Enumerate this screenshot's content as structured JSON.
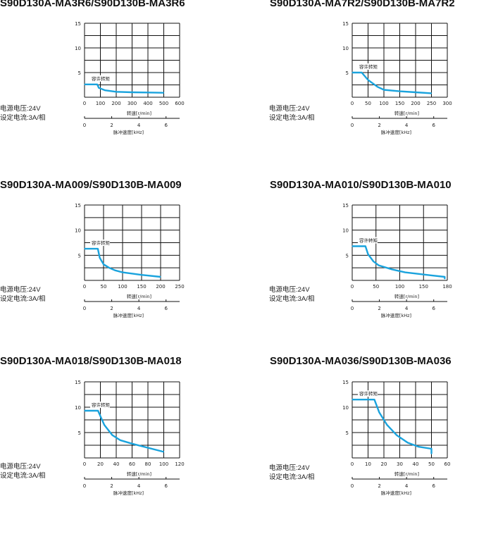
{
  "common": {
    "voltage": "电源电压:24V",
    "current": "设定电流:3A/相",
    "rated_torque_label": "容许转矩",
    "speed_axis_label": "转速[r/min]",
    "pulse_axis_label": "脉冲速度[kHz]",
    "curve_color": "#1aa3dd"
  },
  "chart_data": [
    {
      "type": "line",
      "title": "S90D130A-MA3R6/S90D130B-MA3R6",
      "xlabel": "转速[r/min]",
      "x2label": "脉冲速度[kHz]",
      "ylabel": "",
      "xlim": [
        0,
        600
      ],
      "ylim": [
        0,
        15
      ],
      "xticks": [
        "0",
        "100",
        "200",
        "300",
        "400",
        "500",
        "600"
      ],
      "yticks": [
        "5",
        "10",
        "15"
      ],
      "x2ticks": [
        "0",
        "2",
        "4",
        "6"
      ],
      "series": [
        {
          "name": "容许转矩",
          "x": [
            0,
            80,
            90,
            130,
            200,
            300,
            400,
            500
          ],
          "y": [
            2.6,
            2.6,
            1.9,
            1.4,
            1.1,
            1.0,
            0.95,
            0.9
          ]
        }
      ]
    },
    {
      "type": "line",
      "title": "S90D130A-MA7R2/S90D130B-MA7R2",
      "xlabel": "转速[r/min]",
      "x2label": "脉冲速度[kHz]",
      "ylabel": "",
      "xlim": [
        0,
        300
      ],
      "ylim": [
        0,
        15
      ],
      "xticks": [
        "0",
        "50",
        "100",
        "150",
        "200",
        "250",
        "300"
      ],
      "yticks": [
        "5",
        "10",
        "15"
      ],
      "x2ticks": [
        "0",
        "2",
        "4",
        "6"
      ],
      "series": [
        {
          "name": "容许转矩",
          "x": [
            0,
            30,
            50,
            80,
            100,
            150,
            200,
            250
          ],
          "y": [
            5.0,
            5.0,
            3.5,
            2.1,
            1.5,
            1.2,
            1.0,
            0.8
          ]
        }
      ]
    },
    {
      "type": "line",
      "title": "S90D130A-MA009/S90D130B-MA009",
      "xlabel": "转速[r/min]",
      "x2label": "脉冲速度[kHz]",
      "ylabel": "",
      "xlim": [
        0,
        250
      ],
      "ylim": [
        0,
        15
      ],
      "xticks": [
        "0",
        "50",
        "100",
        "150",
        "200",
        "250"
      ],
      "yticks": [
        "5",
        "10",
        "15"
      ],
      "x2ticks": [
        "0",
        "2",
        "4",
        "6"
      ],
      "series": [
        {
          "name": "容许转矩",
          "x": [
            0,
            35,
            40,
            50,
            65,
            80,
            100,
            150,
            200
          ],
          "y": [
            6.3,
            6.3,
            4.5,
            3.2,
            2.5,
            2.0,
            1.6,
            1.1,
            0.7
          ]
        }
      ]
    },
    {
      "type": "line",
      "title": "S90D130A-MA010/S90D130B-MA010",
      "xlabel": "转速[r/min]",
      "x2label": "脉冲速度[kHz]",
      "ylabel": "",
      "xlim": [
        0,
        180
      ],
      "ylim": [
        0,
        15
      ],
      "xticks": [
        "0",
        "50",
        "100",
        "150",
        "180"
      ],
      "yticks": [
        "5",
        "10",
        "15"
      ],
      "x2ticks": [
        "0",
        "2",
        "4",
        "6"
      ],
      "series": [
        {
          "name": "容许转矩",
          "x": [
            0,
            25,
            30,
            40,
            50,
            75,
            100,
            150,
            175,
            175
          ],
          "y": [
            6.8,
            6.8,
            5.2,
            3.8,
            3.0,
            2.2,
            1.6,
            1.0,
            0.7,
            0.3
          ]
        }
      ]
    },
    {
      "type": "line",
      "title": "S90D130A-MA018/S90D130B-MA018",
      "xlabel": "转速[r/min]",
      "x2label": "脉冲速度[kHz]",
      "ylabel": "",
      "xlim": [
        0,
        120
      ],
      "ylim": [
        0,
        15
      ],
      "xticks": [
        "0",
        "20",
        "40",
        "60",
        "80",
        "100",
        "120"
      ],
      "yticks": [
        "5",
        "10",
        "15"
      ],
      "x2ticks": [
        "0",
        "2",
        "4",
        "6"
      ],
      "series": [
        {
          "name": "容许转矩",
          "x": [
            0,
            17,
            25,
            35,
            45,
            60,
            80,
            100
          ],
          "y": [
            9.3,
            9.3,
            6.5,
            4.5,
            3.5,
            2.8,
            2.0,
            1.2
          ]
        }
      ]
    },
    {
      "type": "line",
      "title": "S90D130A-MA036/S90D130B-MA036",
      "xlabel": "转速[r/min]",
      "x2label": "脉冲速度[kHz]",
      "ylabel": "",
      "xlim": [
        0,
        60
      ],
      "ylim": [
        0,
        15
      ],
      "xticks": [
        "0",
        "10",
        "20",
        "30",
        "40",
        "50",
        "60"
      ],
      "yticks": [
        "5",
        "10",
        "15"
      ],
      "x2ticks": [
        "0",
        "2",
        "4",
        "6"
      ],
      "series": [
        {
          "name": "容许转矩",
          "x": [
            0,
            14,
            17,
            22,
            28,
            35,
            42,
            50,
            50
          ],
          "y": [
            11.5,
            11.5,
            9.0,
            6.5,
            4.5,
            3.0,
            2.2,
            1.8,
            0.8
          ]
        }
      ]
    }
  ]
}
